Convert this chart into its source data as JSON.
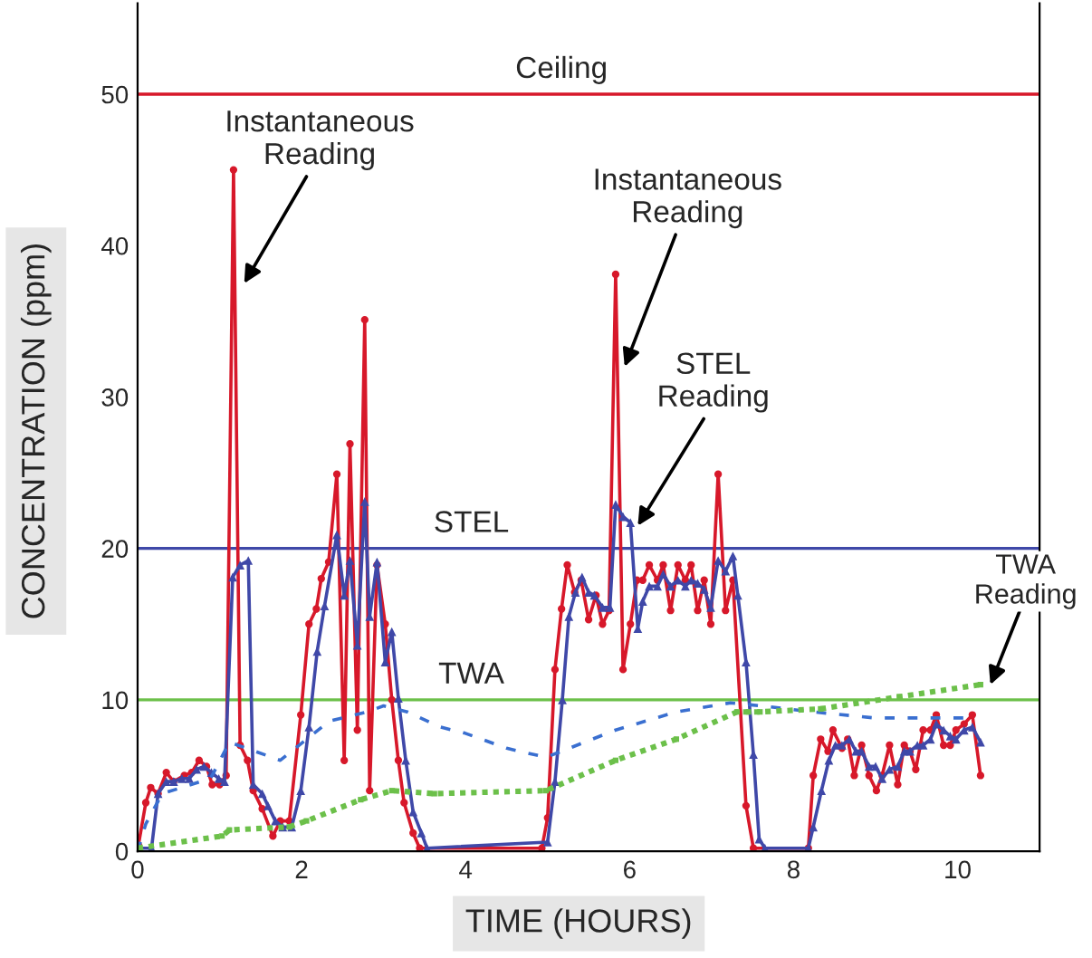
{
  "chart_data": {
    "type": "line",
    "xlabel": "TIME (HOURS)",
    "ylabel": "CONCENTRATION (ppm)",
    "xlim": [
      0,
      11
    ],
    "ylim": [
      0,
      56
    ],
    "xticks": [
      0,
      2,
      4,
      6,
      8,
      10
    ],
    "yticks": [
      0,
      10,
      20,
      30,
      40,
      50
    ],
    "grid": false,
    "legend": false,
    "series": [
      {
        "color": "#d7182a",
        "marker": "circle",
        "line_style": "solid",
        "x": [
          0.01,
          0.1,
          0.16,
          0.25,
          0.35,
          0.44,
          0.57,
          0.66,
          0.75,
          0.84,
          0.91,
          1.0,
          1.08,
          1.17,
          1.25,
          1.34,
          1.41,
          1.52,
          1.65,
          1.74,
          1.85,
          1.99,
          2.09,
          2.18,
          2.24,
          2.33,
          2.43,
          2.52,
          2.59,
          2.68,
          2.77,
          2.83,
          2.92,
          3.02,
          3.1,
          3.18,
          3.25,
          3.36,
          3.44,
          4.93,
          5.0,
          5.09,
          5.17,
          5.24,
          5.33,
          5.41,
          5.5,
          5.59,
          5.67,
          5.75,
          5.83,
          5.92,
          6.01,
          6.09,
          6.16,
          6.24,
          6.34,
          6.41,
          6.5,
          6.59,
          6.68,
          6.75,
          6.83,
          6.91,
          6.99,
          7.08,
          7.17,
          7.26,
          7.42,
          7.51,
          8.18,
          8.24,
          8.33,
          8.42,
          8.48,
          8.59,
          8.66,
          8.74,
          8.83,
          8.92,
          9.01,
          9.08,
          9.17,
          9.27,
          9.35,
          9.42,
          9.49,
          9.58,
          9.67,
          9.74,
          9.83,
          9.91,
          9.98,
          10.08,
          10.18,
          10.28
        ],
        "values": [
          0.4,
          3.2,
          4.2,
          3.8,
          5.2,
          4.6,
          5.0,
          5.2,
          6.0,
          5.6,
          4.4,
          4.4,
          5.0,
          45,
          7.0,
          6.0,
          4.0,
          2.8,
          1.0,
          2.0,
          2.0,
          9.0,
          15.0,
          16.0,
          18.0,
          19.1,
          24.9,
          6.0,
          26.9,
          8.0,
          35.1,
          4.0,
          18.9,
          15.0,
          10.0,
          6.0,
          3.2,
          1.2,
          0.2,
          0.2,
          2.2,
          12.0,
          16.0,
          18.9,
          17.1,
          17.9,
          15.3,
          16.9,
          15.0,
          15.9,
          38.1,
          12.0,
          15.0,
          17.9,
          17.9,
          18.9,
          17.9,
          18.9,
          15.9,
          18.9,
          17.9,
          18.9,
          15.9,
          17.9,
          15.0,
          24.9,
          15.9,
          17.9,
          3.0,
          0.2,
          0.2,
          5.0,
          7.4,
          6.6,
          8.0,
          6.8,
          7.4,
          5.0,
          7.0,
          5.0,
          4.0,
          5.0,
          7.0,
          4.4,
          7.0,
          6.6,
          5.4,
          8.0,
          8.0,
          9.0,
          7.0,
          7.0,
          8.0,
          8.4,
          9.0,
          5.0
        ]
      },
      {
        "color": "#3f48a8",
        "marker": "triangle",
        "line_style": "solid",
        "x": [
          0.01,
          0.17,
          0.25,
          0.35,
          0.44,
          0.54,
          0.63,
          0.72,
          0.81,
          0.9,
          0.99,
          1.06,
          1.16,
          1.25,
          1.35,
          1.41,
          1.52,
          1.59,
          1.68,
          1.77,
          1.88,
          1.99,
          2.09,
          2.19,
          2.28,
          2.43,
          2.52,
          2.59,
          2.68,
          2.77,
          2.83,
          2.92,
          3.02,
          3.1,
          3.18,
          3.27,
          3.36,
          3.46,
          3.53,
          5.0,
          5.09,
          5.18,
          5.26,
          5.34,
          5.42,
          5.5,
          5.57,
          5.67,
          5.76,
          5.83,
          5.92,
          6.01,
          6.1,
          6.16,
          6.24,
          6.34,
          6.41,
          6.5,
          6.59,
          6.68,
          6.75,
          6.83,
          6.91,
          6.99,
          7.08,
          7.17,
          7.26,
          7.32,
          7.42,
          7.51,
          7.58,
          7.65,
          8.18,
          8.24,
          8.34,
          8.43,
          8.51,
          8.59,
          8.68,
          8.76,
          8.83,
          8.92,
          9.0,
          9.08,
          9.17,
          9.27,
          9.35,
          9.42,
          9.51,
          9.58,
          9.67,
          9.74,
          9.83,
          9.91,
          9.98,
          10.08,
          10.18,
          10.28
        ],
        "values": [
          0.2,
          0.2,
          3.8,
          4.6,
          4.6,
          4.8,
          4.8,
          5.4,
          5.6,
          5.2,
          4.8,
          4.6,
          18.1,
          18.9,
          19.2,
          4.4,
          3.8,
          3.0,
          2.0,
          1.6,
          1.6,
          4.0,
          8.2,
          13.2,
          16.2,
          20.9,
          16.9,
          19.2,
          13.6,
          23.1,
          15.5,
          19.1,
          12.5,
          14.5,
          10.1,
          6.0,
          2.6,
          1.2,
          0.2,
          0.6,
          4.6,
          10.0,
          15.5,
          17.1,
          18.1,
          17.1,
          16.9,
          16.1,
          16.1,
          22.9,
          22.1,
          21.7,
          14.7,
          16.5,
          17.5,
          17.5,
          18.3,
          17.5,
          17.9,
          17.5,
          17.9,
          17.7,
          17.3,
          16.1,
          19.2,
          18.5,
          19.5,
          16.9,
          12.5,
          6.4,
          0.8,
          0.2,
          0.2,
          1.6,
          4.0,
          6.0,
          7.0,
          7.0,
          7.4,
          6.6,
          6.6,
          5.6,
          5.6,
          4.8,
          5.4,
          5.6,
          6.6,
          6.6,
          7.0,
          7.0,
          7.4,
          8.4,
          8.0,
          7.6,
          7.4,
          8.0,
          8.2,
          7.2
        ]
      },
      {
        "color": "#3a6fd0",
        "marker": "none",
        "line_style": "dashed",
        "x": [
          0.0,
          0.1,
          0.3,
          0.89,
          1.12,
          1.74,
          2.34,
          2.8,
          3.0,
          3.29,
          3.69,
          3.99,
          4.5,
          4.98,
          5.83,
          6.57,
          7.23,
          7.6,
          8.24,
          8.98,
          10.2
        ],
        "values": [
          0.0,
          1.8,
          3.8,
          4.8,
          7.2,
          6.0,
          8.6,
          9.2,
          9.6,
          9.2,
          8.2,
          7.8,
          6.8,
          6.2,
          8.0,
          9.2,
          9.8,
          9.6,
          9.2,
          8.8,
          8.8
        ]
      },
      {
        "color": "#6cc04a",
        "marker": "square",
        "line_style": "dotted",
        "x": [
          0.0,
          1.03,
          1.12,
          1.85,
          2.06,
          2.72,
          3.1,
          3.62,
          4.98,
          5.83,
          6.57,
          7.31,
          7.45,
          7.59,
          8.33,
          9.29,
          10.28
        ],
        "values": [
          0.2,
          1.0,
          1.4,
          1.6,
          2.0,
          3.4,
          4.0,
          3.8,
          4.0,
          6.0,
          7.4,
          9.2,
          9.2,
          9.2,
          9.4,
          10.2,
          11.0
        ]
      }
    ],
    "ref_lines": [
      {
        "axis": "y",
        "value": 50,
        "label": "Ceiling",
        "color": "#d7182a"
      },
      {
        "axis": "y",
        "value": 20,
        "label": "STEL",
        "color": "#3f48a8"
      },
      {
        "axis": "y",
        "value": 10,
        "label": "TWA",
        "color": "#6cc04a"
      }
    ],
    "annotations": [
      {
        "text": "Instantaneous\nReading",
        "x": 1.3,
        "y": 37.5
      },
      {
        "text": "Instantaneous\nReading",
        "x": 5.94,
        "y": 32
      },
      {
        "text": "STEL\nReading",
        "x": 6.1,
        "y": 21.5
      },
      {
        "text": "TWA\nReading",
        "x": 10.4,
        "y": 11.0
      }
    ]
  }
}
